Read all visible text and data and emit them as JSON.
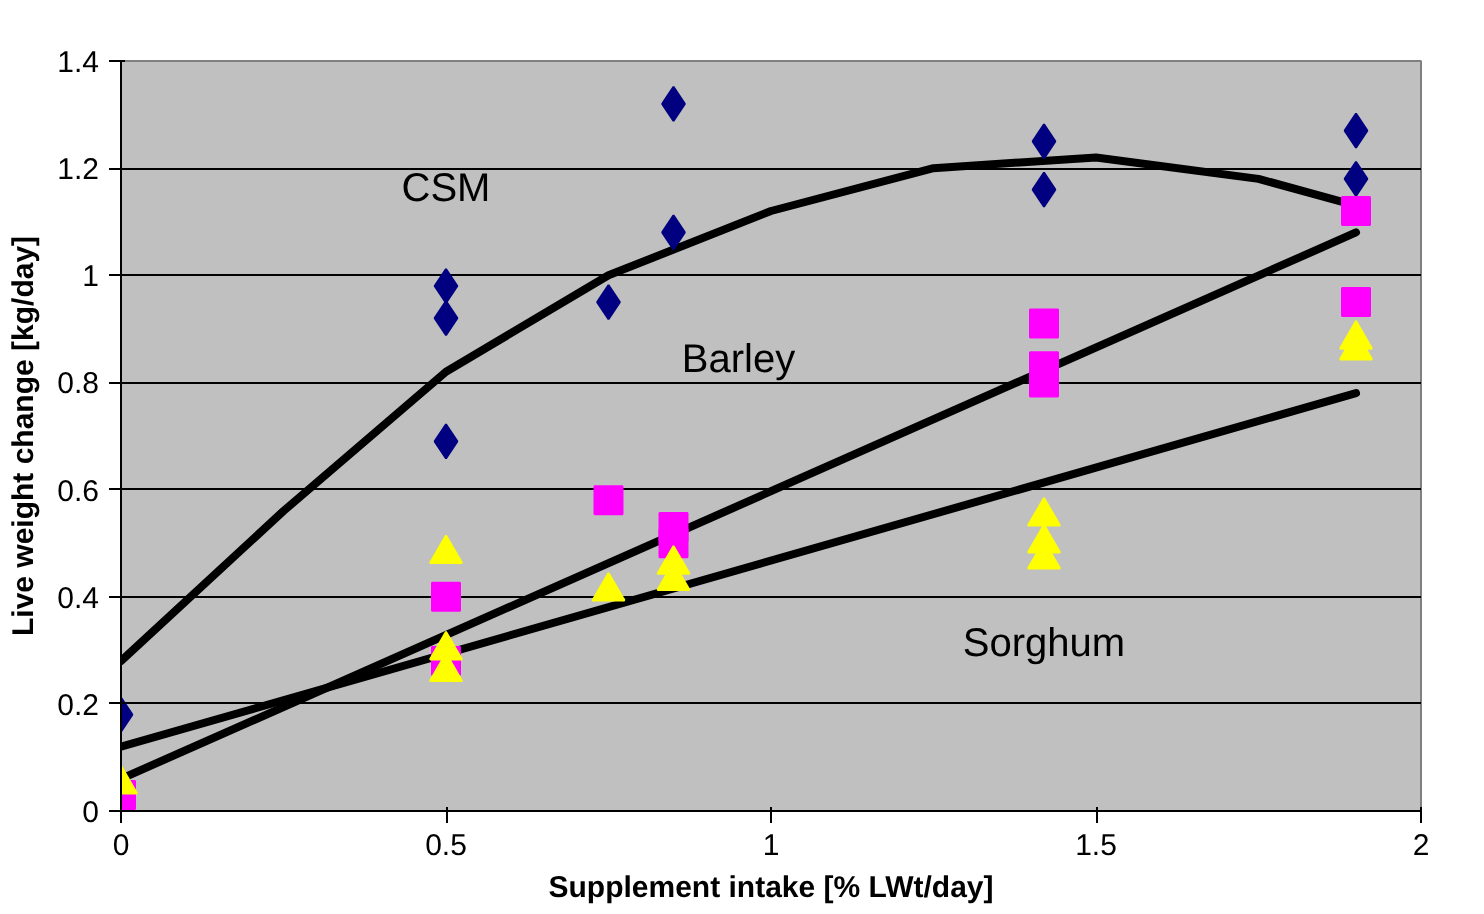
{
  "chart_data": {
    "type": "scatter",
    "xlabel": "Supplement intake [% LWt/day]",
    "ylabel": "Live weight change [kg/day]",
    "xlim": [
      0,
      2
    ],
    "xticks": [
      0,
      0.5,
      1,
      1.5,
      2
    ],
    "ylim": [
      0,
      1.4
    ],
    "yticks": [
      0,
      0.2,
      0.4,
      0.6,
      0.8,
      1,
      1.2,
      1.4
    ],
    "grid": "y",
    "series": [
      {
        "type": "line",
        "name": "CSM",
        "color": "#000000",
        "x": [
          0,
          0.25,
          0.5,
          0.75,
          1.0,
          1.25,
          1.5,
          1.75,
          1.9
        ],
        "values": [
          0.28,
          0.56,
          0.82,
          1.0,
          1.12,
          1.2,
          1.22,
          1.18,
          1.13
        ]
      },
      {
        "type": "line",
        "name": "Barley",
        "color": "#000000",
        "x": [
          0,
          1.9
        ],
        "values": [
          0.06,
          1.08
        ]
      },
      {
        "type": "line",
        "name": "Sorghum",
        "color": "#000000",
        "x": [
          0,
          1.9
        ],
        "values": [
          0.12,
          0.78
        ]
      },
      {
        "color": "#000080",
        "marker": "diamond",
        "x": [
          0,
          0.5,
          0.5,
          0.5,
          0.75,
          0.85,
          0.85,
          1.42,
          1.42,
          1.9,
          1.9
        ],
        "values": [
          0.18,
          0.98,
          0.92,
          0.69,
          0.95,
          1.32,
          1.08,
          1.25,
          1.16,
          1.27,
          1.18
        ]
      },
      {
        "color": "#ff00ff",
        "marker": "square",
        "x": [
          0,
          0.5,
          0.5,
          0.75,
          0.85,
          0.85,
          1.42,
          1.42,
          1.42,
          1.9,
          1.9
        ],
        "values": [
          0.03,
          0.4,
          0.28,
          0.58,
          0.53,
          0.5,
          0.91,
          0.8,
          0.83,
          1.12,
          0.95
        ]
      },
      {
        "color": "#ffff00",
        "marker": "triangle",
        "x": [
          0,
          0.5,
          0.5,
          0.5,
          0.75,
          0.85,
          0.85,
          1.42,
          1.42,
          1.42,
          1.9,
          1.9
        ],
        "values": [
          0.05,
          0.48,
          0.3,
          0.26,
          0.41,
          0.46,
          0.43,
          0.55,
          0.5,
          0.47,
          0.88,
          0.86
        ]
      }
    ]
  }
}
